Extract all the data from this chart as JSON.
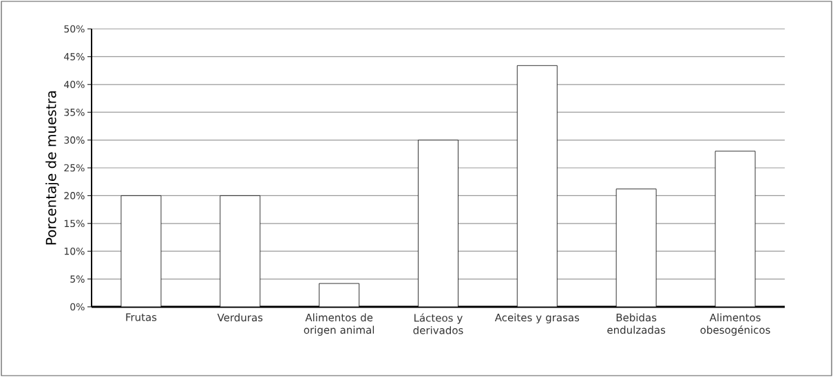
{
  "chart_data": {
    "type": "bar",
    "ylabel": "Porcentaje de muestra",
    "categories": [
      "Frutas",
      "Verduras",
      "Alimentos de origen animal",
      "Lácteos y derivados",
      "Aceites y grasas",
      "Bebidas endulzadas",
      "Alimentos obesogénicos"
    ],
    "values": [
      20,
      20,
      4.2,
      30,
      43.4,
      21.2,
      28
    ],
    "color": "#ffffff",
    "ylim": [
      0,
      50
    ],
    "yticks": [
      {
        "value": 0,
        "label": "0%"
      },
      {
        "value": 5,
        "label": "5%"
      },
      {
        "value": 10,
        "label": "10%"
      },
      {
        "value": 15,
        "label": "15%"
      },
      {
        "value": 20,
        "label": "20%"
      },
      {
        "value": 25,
        "label": "25%"
      },
      {
        "value": 30,
        "label": "30%"
      },
      {
        "value": 35,
        "label": "35%"
      },
      {
        "value": 40,
        "label": "40%"
      },
      {
        "value": 45,
        "label": "45%"
      },
      {
        "value": 50,
        "label": "50%"
      }
    ],
    "grid": "y"
  }
}
